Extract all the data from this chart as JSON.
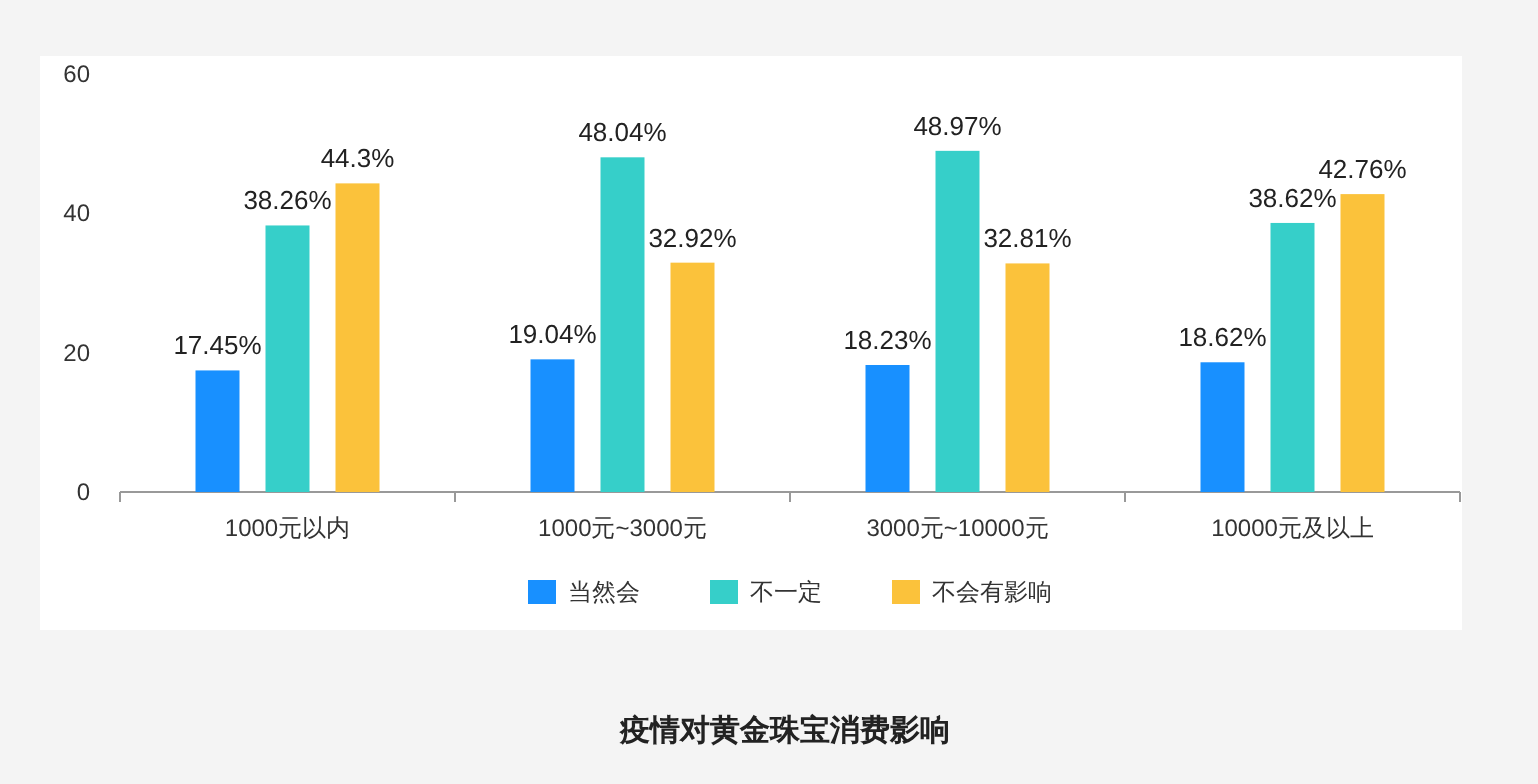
{
  "chart_data": {
    "type": "bar",
    "title": "疫情对黄金珠宝消费影响",
    "categories": [
      "1000元以内",
      "1000元~3000元",
      "3000元~10000元",
      "10000元及以上"
    ],
    "series": [
      {
        "name": "当然会",
        "color": "#1890ff",
        "values": [
          17.45,
          19.04,
          18.23,
          18.62
        ],
        "value_labels": [
          "17.45%",
          "19.04%",
          "18.23%",
          "18.62%"
        ]
      },
      {
        "name": "不一定",
        "color": "#36cfc9",
        "values": [
          38.26,
          48.04,
          48.97,
          38.62
        ],
        "value_labels": [
          "38.26%",
          "48.04%",
          "48.97%",
          "38.62%"
        ]
      },
      {
        "name": "不会有影响",
        "color": "#fbc23b",
        "values": [
          44.3,
          32.92,
          32.81,
          42.76
        ],
        "value_labels": [
          "44.3%",
          "32.92%",
          "32.81%",
          "42.76%"
        ]
      }
    ],
    "ylim": [
      0,
      60
    ],
    "yticks": [
      0,
      20,
      40,
      60
    ],
    "legend": "bottom"
  }
}
